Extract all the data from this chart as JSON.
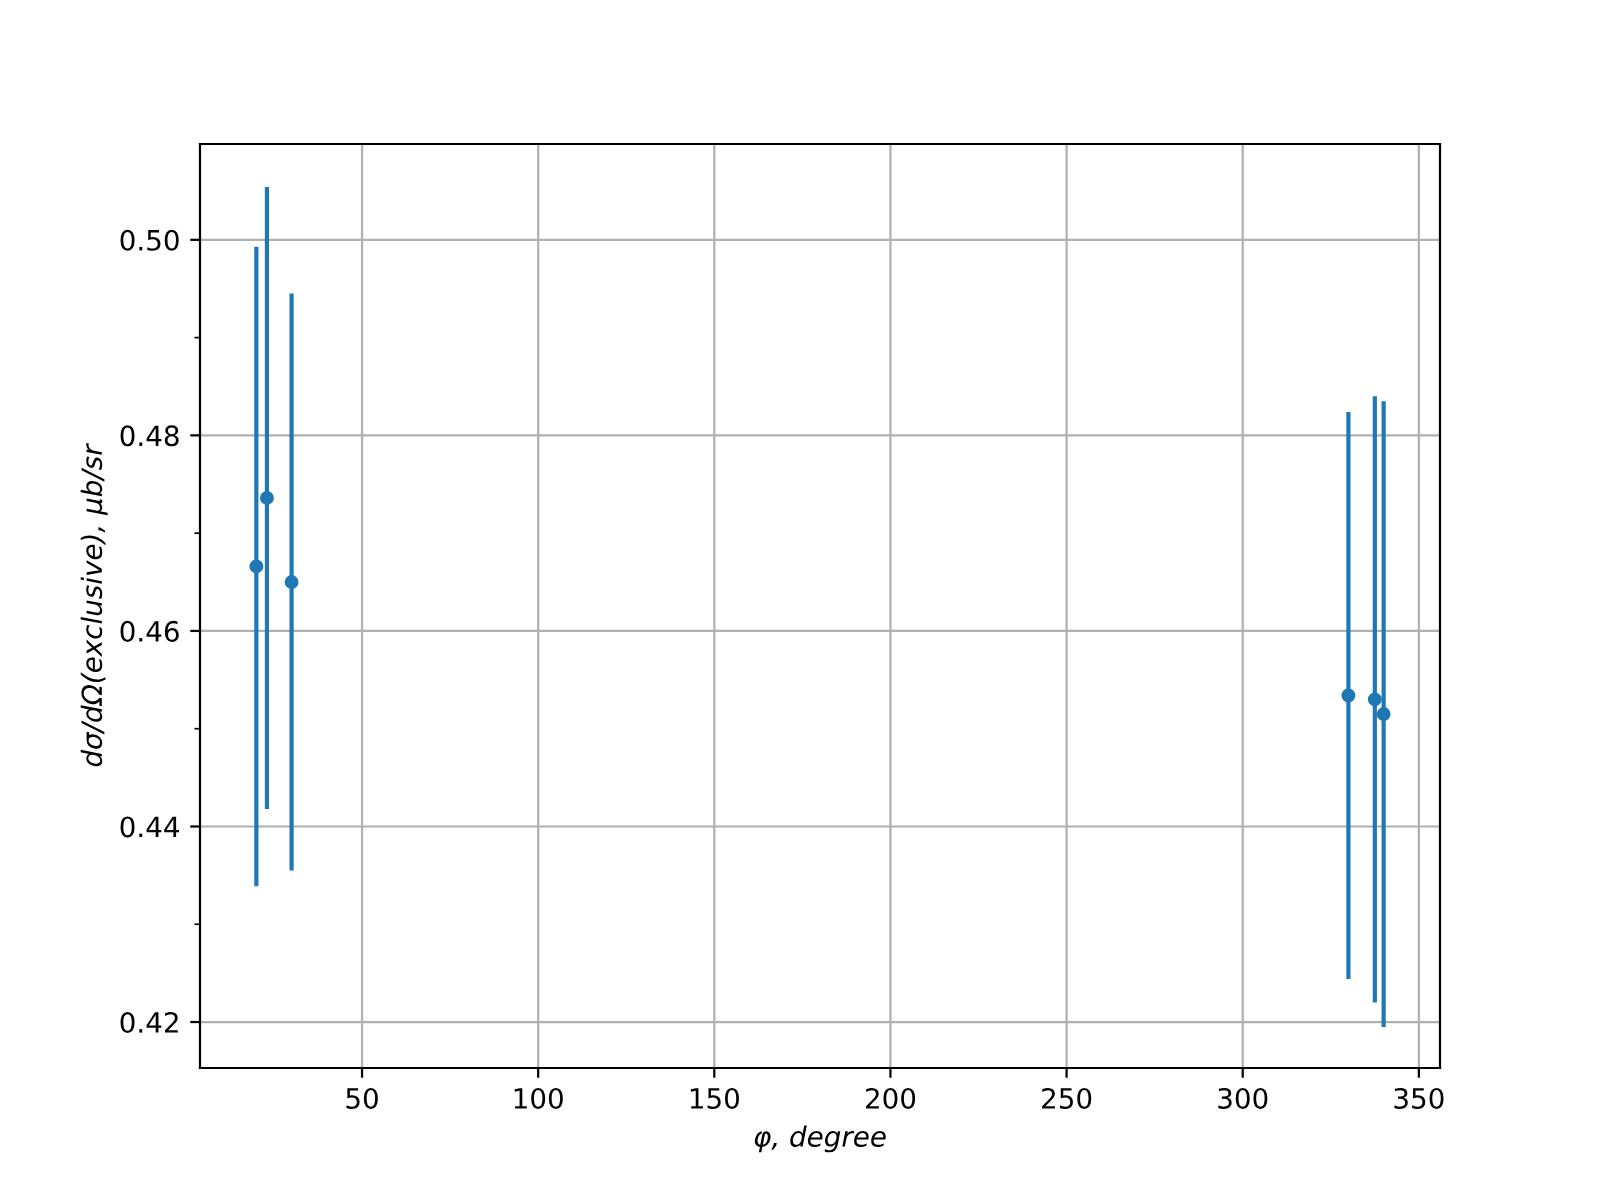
{
  "chart_data": {
    "type": "scatter",
    "xlabel": "φ, degree",
    "ylabel": "dσ/dΩ(exclusive), μb/sr",
    "x": [
      20,
      23,
      30,
      330,
      337.5,
      340
    ],
    "values": [
      0.4666,
      0.4736,
      0.465,
      0.4534,
      0.453,
      0.4515
    ],
    "errors": [
      0.0327,
      0.0318,
      0.0295,
      0.029,
      0.031,
      0.032
    ],
    "color": "#1f77b4",
    "marker": "circle",
    "grid": true,
    "xlim": [
      4,
      356
    ],
    "ylim": [
      0.4153,
      0.5098
    ],
    "xticks": [
      50,
      100,
      150,
      200,
      250,
      300,
      350
    ],
    "yticks": [
      {
        "value": 0.42,
        "label": "0.42"
      },
      {
        "value": 0.43,
        "label": null
      },
      {
        "value": 0.44,
        "label": "0.44"
      },
      {
        "value": 0.45,
        "label": null
      },
      {
        "value": 0.46,
        "label": "0.46"
      },
      {
        "value": 0.47,
        "label": null
      },
      {
        "value": 0.48,
        "label": "0.48"
      },
      {
        "value": 0.49,
        "label": null
      },
      {
        "value": 0.5,
        "label": "0.50"
      }
    ]
  }
}
